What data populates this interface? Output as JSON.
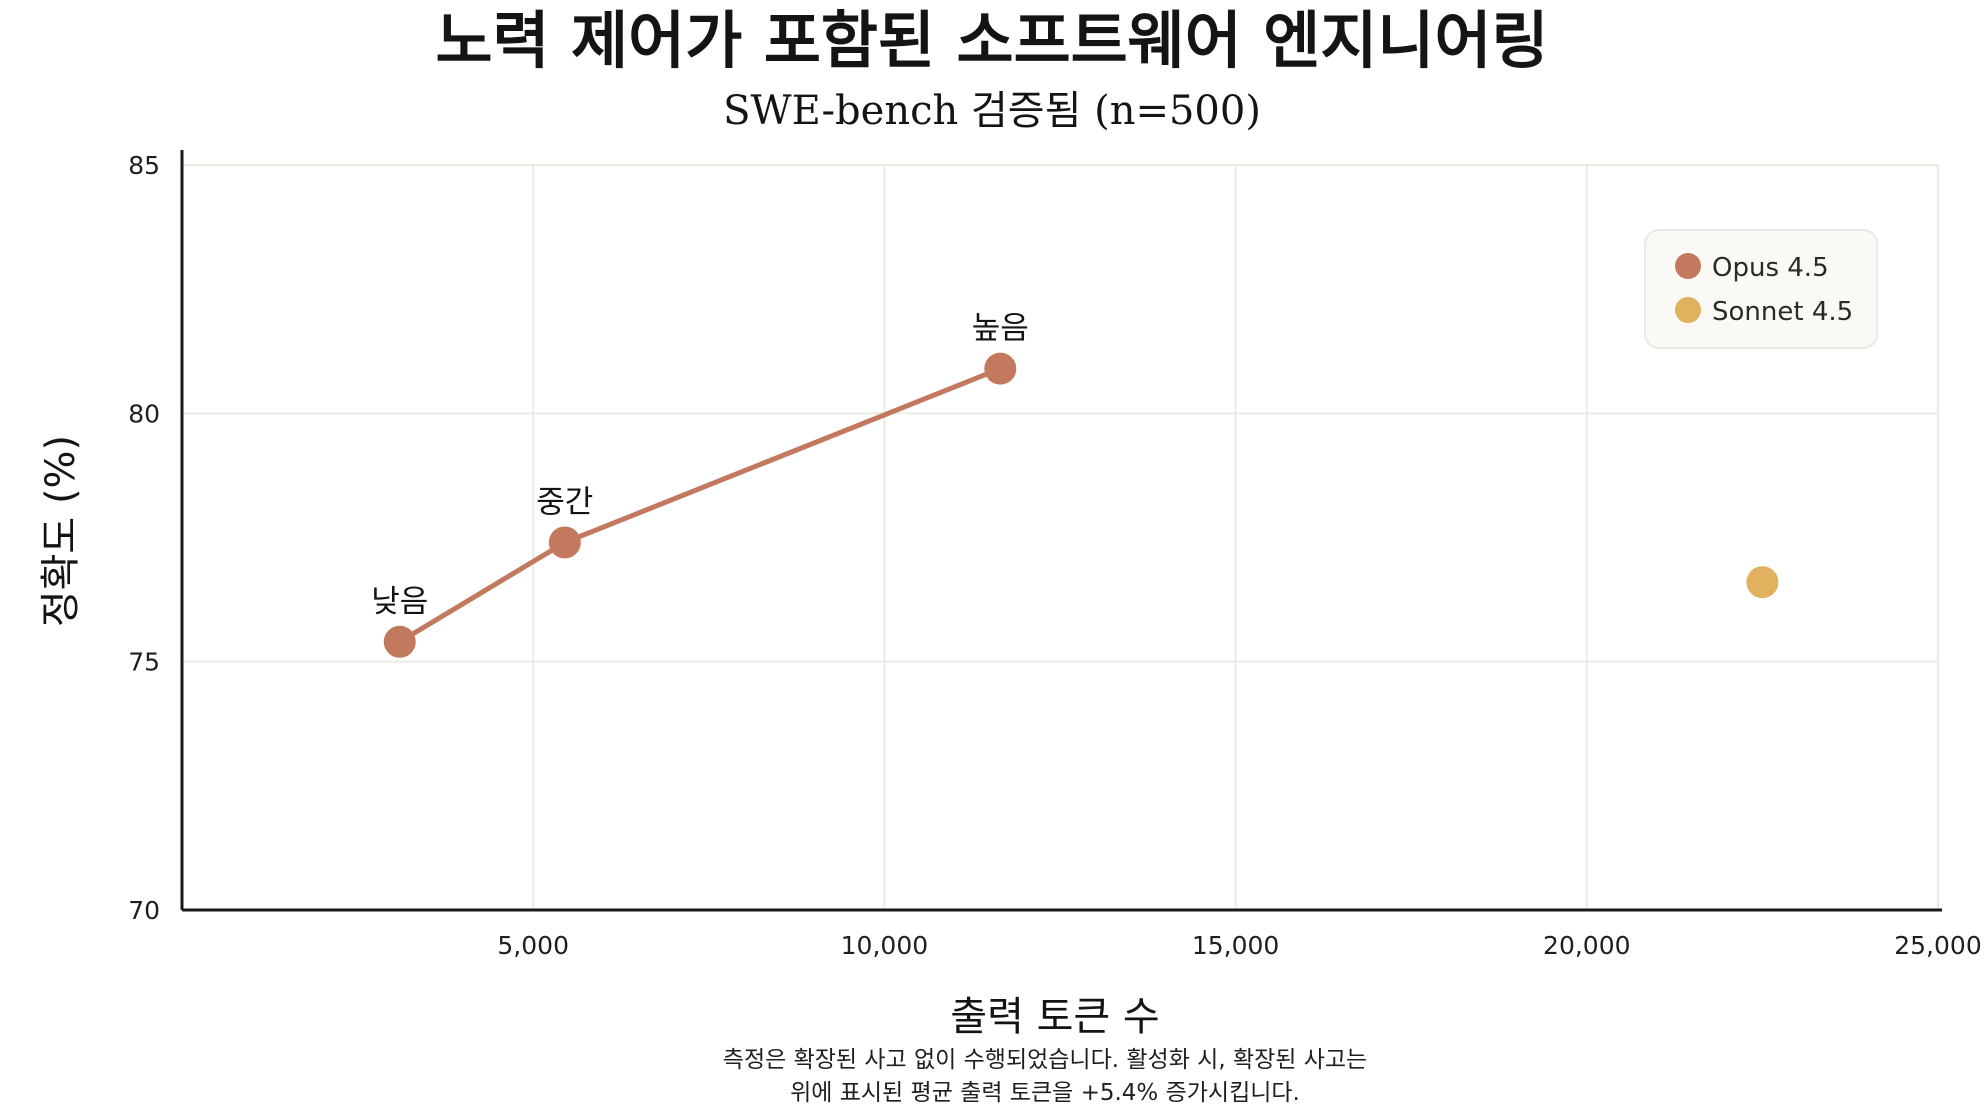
{
  "colors": {
    "opus": "#c2795d",
    "sonnet": "#e0b15f",
    "grid": "#ecebe3",
    "axis": "#1a1a18",
    "legend_bg": "#faf9f5",
    "legend_border": "#ebe9e1"
  },
  "chart_data": {
    "type": "scatter",
    "title": "노력 제어가 포함된 소프트웨어 엔지니어링",
    "subtitle": "SWE-bench 검증됨 (n=500)",
    "xlabel": "출력 토큰 수",
    "ylabel": "정확도 (%)",
    "xlim": [
      0,
      25000
    ],
    "ylim": [
      70,
      85
    ],
    "x_ticks": [
      5000,
      10000,
      15000,
      20000,
      25000
    ],
    "x_tick_labels": [
      "5,000",
      "10,000",
      "15,000",
      "20,000",
      "25,000"
    ],
    "y_ticks": [
      70,
      75,
      80,
      85
    ],
    "y_tick_labels": [
      "70",
      "75",
      "80",
      "85"
    ],
    "grid": true,
    "legend_position": "top-right",
    "series": [
      {
        "name": "Opus 4.5",
        "color": "#c2795d",
        "connected": true,
        "points": [
          {
            "x": 3100,
            "y": 75.4,
            "label": "낮음"
          },
          {
            "x": 5450,
            "y": 77.4,
            "label": "중간"
          },
          {
            "x": 11650,
            "y": 80.9,
            "label": "높음"
          }
        ]
      },
      {
        "name": "Sonnet 4.5",
        "color": "#e0b15f",
        "connected": false,
        "points": [
          {
            "x": 22500,
            "y": 76.6,
            "label": ""
          }
        ]
      }
    ],
    "footnote": [
      "측정은 확장된 사고 없이 수행되었습니다. 활성화 시, 확장된 사고는",
      "위에 표시된 평균 출력 토큰을 +5.4% 증가시킵니다."
    ]
  }
}
